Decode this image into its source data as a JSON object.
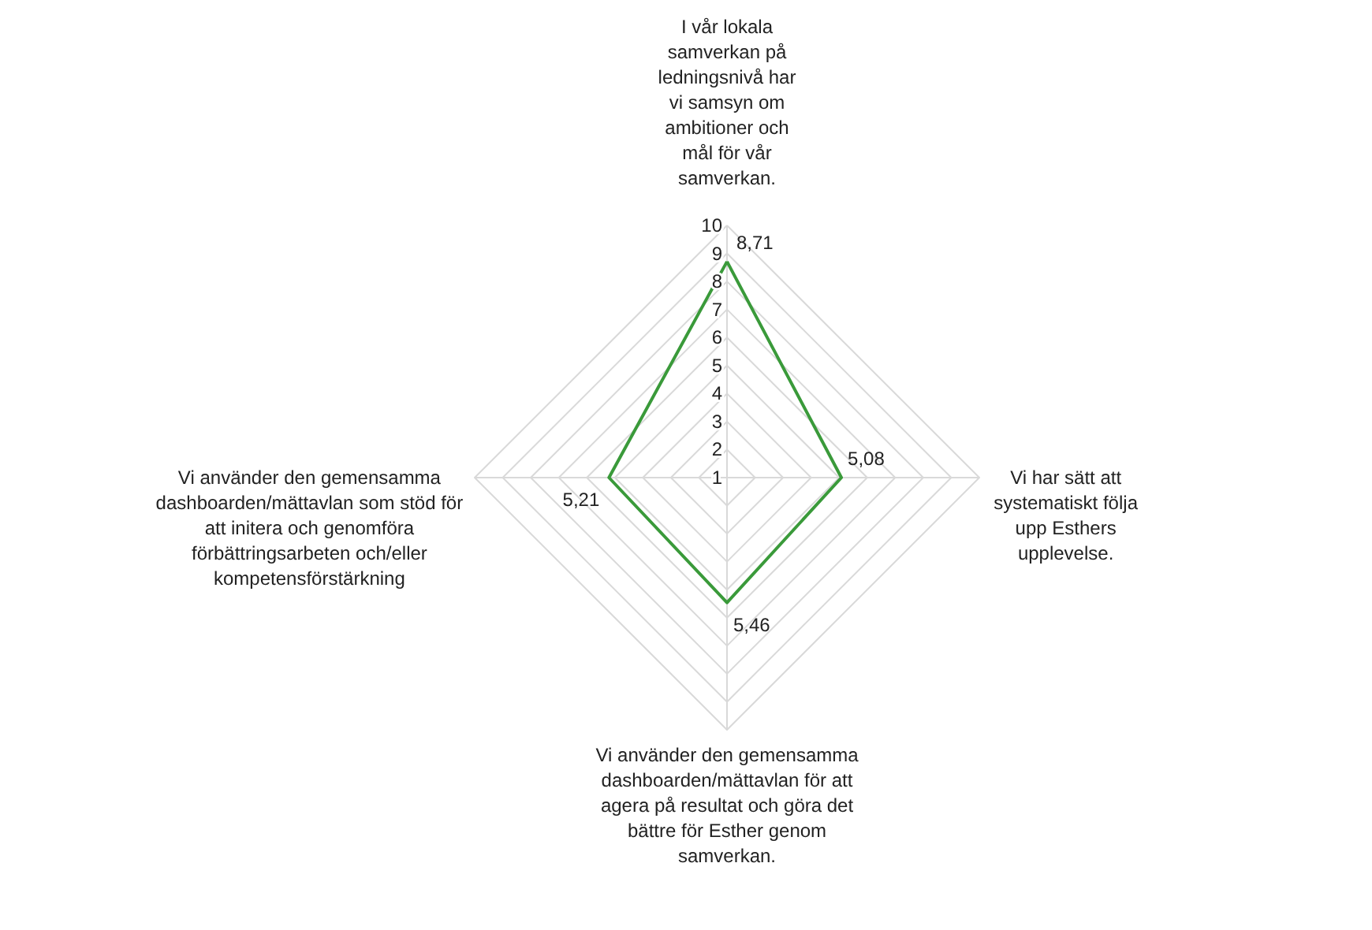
{
  "chart_data": {
    "type": "radar",
    "categories": [
      "I vår lokala samverkan på ledningsnivå har vi samsyn om ambitioner och mål för vår samverkan.",
      "Vi har sätt att systematiskt följa upp Esthers upplevelse.",
      "Vi använder den gemensamma dashboarden/mättavlan för att agera på resultat och göra det bättre för Esther genom samverkan.",
      "Vi använder den gemensamma dashboarden/mättavlan som stöd för att initera och genomföra förbättringsarbeten och/eller kompetensförstärkning"
    ],
    "series": [
      {
        "color": "#3a9a3a",
        "values": [
          8.71,
          5.08,
          5.46,
          5.21
        ],
        "value_labels": [
          "8,71",
          "5,08",
          "5,46",
          "5,21"
        ]
      }
    ],
    "ylim": [
      1,
      10
    ],
    "yticks": [
      1,
      2,
      3,
      4,
      5,
      6,
      7,
      8,
      9,
      10
    ],
    "grid": true
  }
}
